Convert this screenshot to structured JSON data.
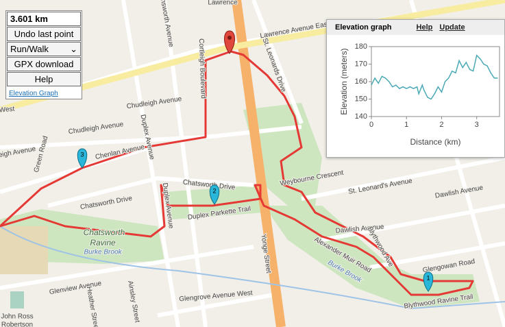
{
  "panel": {
    "distance": "3.601 km",
    "undo": "Undo last point",
    "mode": "Run/Walk",
    "gpx": "GPX download",
    "help": "Help",
    "elevation_link": "Elevation Graph"
  },
  "elevation_graph": {
    "title": "Elevation graph",
    "help": "Help",
    "update": "Update",
    "chart": {
      "type": "line",
      "x_label": "Distance (km)",
      "y_label": "Elevation (meters)",
      "xlim": [
        0,
        3.65
      ],
      "ylim": [
        140,
        180
      ],
      "xticks": [
        0,
        1,
        2,
        3
      ],
      "yticks": [
        140,
        150,
        160,
        170,
        180
      ],
      "color": "#4aa9b5",
      "x": [
        0,
        0.1,
        0.2,
        0.3,
        0.4,
        0.5,
        0.6,
        0.7,
        0.8,
        0.9,
        1.0,
        1.1,
        1.2,
        1.3,
        1.35,
        1.45,
        1.5,
        1.6,
        1.7,
        1.8,
        1.9,
        2.0,
        2.1,
        2.2,
        2.3,
        2.4,
        2.5,
        2.6,
        2.7,
        2.8,
        2.9,
        3.0,
        3.1,
        3.2,
        3.3,
        3.4,
        3.5,
        3.6
      ],
      "values": [
        158,
        162,
        159,
        163,
        162,
        160,
        157,
        158,
        156,
        157,
        156,
        157,
        156,
        157,
        153,
        158,
        155,
        151,
        150,
        153,
        157,
        154,
        160,
        162,
        166,
        165,
        172,
        168,
        171,
        167,
        166,
        175,
        173,
        170,
        169,
        165,
        162,
        162
      ]
    }
  },
  "map": {
    "labels": [
      "Lawrence",
      "Lawrence Avenue East",
      "Chudleigh Avenue",
      "Chudleigh Avenue",
      "eigh Avenue",
      "Chenlan Avenue",
      "Chatsworth Drive",
      "Chatsworth Drive",
      "Duplex Parkette Trail",
      "Chatsworth",
      "Ravine",
      "Burke Brook",
      "Glenview Avenue",
      "Glengrove Avenue West",
      "Yonge Street",
      "St. Leonard's Avenue",
      "Dawlish Avenue",
      "Dawlish Avenue",
      "Glengowan Road",
      "Blythwood Ave",
      "Alexander Muir Road",
      "Burke Brook",
      "Blythwood Ravine Trail",
      "Weybourne Crescent",
      "St. Leonards Drive",
      "Cortleigh Boulevard",
      "Duplex Avenue",
      "Unsworth Avenue",
      "Green Road",
      "Ainsley Street",
      "Heather Street",
      "John Ross",
      "Robertson",
      "West",
      "Duplex Avenue"
    ],
    "markers": [
      "1",
      "2",
      "3"
    ]
  }
}
